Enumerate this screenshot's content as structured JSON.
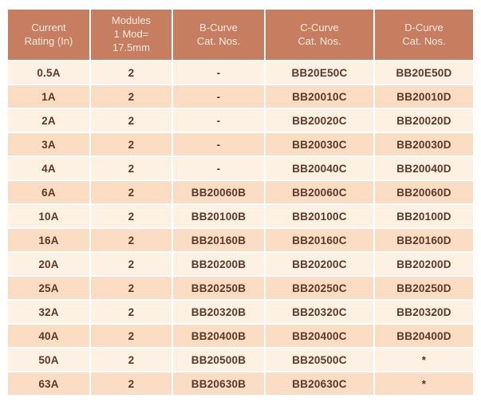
{
  "colors": {
    "header_bg": "#c77d5f",
    "header_text": "#f9ece4",
    "row_light_bg": "#fcf1e2",
    "row_dark_bg": "#faddc2",
    "body_text": "#5d3729",
    "page_bg": "#ffffff"
  },
  "table": {
    "columns": [
      {
        "key": "current-rating",
        "label": "Current\nRating (In)"
      },
      {
        "key": "modules",
        "label": "Modules\n1 Mod=\n17.5mm"
      },
      {
        "key": "b-curve",
        "label": "B-Curve\nCat. Nos."
      },
      {
        "key": "c-curve",
        "label": "C-Curve\nCat. Nos."
      },
      {
        "key": "d-curve",
        "label": "D-Curve\nCat. Nos."
      }
    ],
    "rows": [
      [
        "0.5A",
        "2",
        "-",
        "BB20E50C",
        "BB20E50D"
      ],
      [
        "1A",
        "2",
        "-",
        "BB20010C",
        "BB20010D"
      ],
      [
        "2A",
        "2",
        "-",
        "BB20020C",
        "BB20020D"
      ],
      [
        "3A",
        "2",
        "-",
        "BB20030C",
        "BB20030D"
      ],
      [
        "4A",
        "2",
        "-",
        "BB20040C",
        "BB20040D"
      ],
      [
        "6A",
        "2",
        "BB20060B",
        "BB20060C",
        "BB20060D"
      ],
      [
        "10A",
        "2",
        "BB20100B",
        "BB20100C",
        "BB20100D"
      ],
      [
        "16A",
        "2",
        "BB20160B",
        "BB20160C",
        "BB20160D"
      ],
      [
        "20A",
        "2",
        "BB20200B",
        "BB20200C",
        "BB20200D"
      ],
      [
        "25A",
        "2",
        "BB20250B",
        "BB20250C",
        "BB20250D"
      ],
      [
        "32A",
        "2",
        "BB20320B",
        "BB20320C",
        "BB20320D"
      ],
      [
        "40A",
        "2",
        "BB20400B",
        "BB20400C",
        "BB20400D"
      ],
      [
        "50A",
        "2",
        "BB20500B",
        "BB20500C",
        "*"
      ],
      [
        "63A",
        "2",
        "BB20630B",
        "BB20630C",
        "*"
      ]
    ]
  }
}
